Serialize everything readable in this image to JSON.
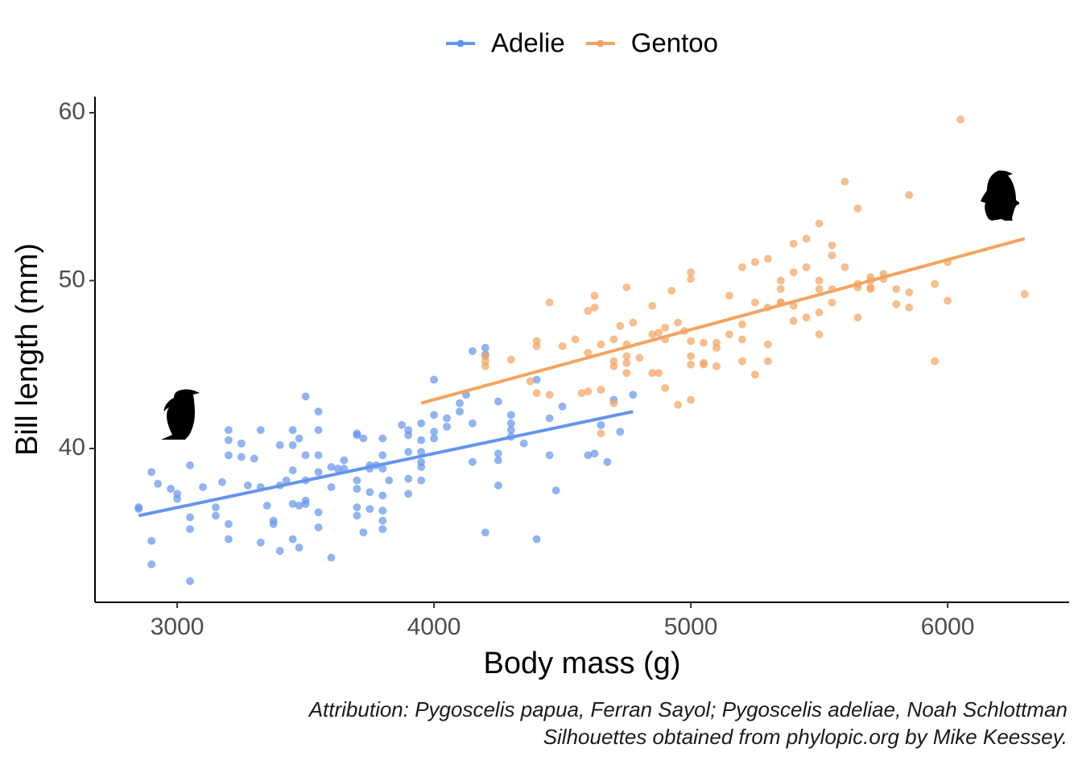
{
  "chart_data": {
    "type": "scatter",
    "xlabel": "Body mass (g)",
    "ylabel": "Bill length (mm)",
    "xlim": [
      2680,
      6473
    ],
    "ylim": [
      30.84,
      60.96
    ],
    "xticks": [
      3000,
      4000,
      5000,
      6000
    ],
    "yticks": [
      40,
      50,
      60
    ],
    "legend": "top",
    "caption": [
      "Attribution: Pygoscelis papua, Ferran Sayol; Pygoscelis adeliae, Noah Schlottman",
      "Silhouettes obtained from phylopic.org by Mike Keessey."
    ],
    "series": [
      {
        "name": "Adelie",
        "color": "#6495ED",
        "x": [
          2850,
          2850,
          2900,
          2900,
          2900,
          2925,
          2975,
          3000,
          3000,
          3050,
          3050,
          3050,
          3050,
          3100,
          3150,
          3175,
          3200,
          3200,
          3200,
          3200,
          3200,
          3150,
          3250,
          3250,
          3275,
          3300,
          3325,
          3325,
          3350,
          3325,
          3375,
          3375,
          3400,
          3400,
          3400,
          3425,
          3450,
          3450,
          3450,
          3450,
          3450,
          3475,
          3475,
          3475,
          3500,
          3500,
          3500,
          3500,
          3500,
          3550,
          3550,
          3550,
          3550,
          3550,
          3550,
          3600,
          3600,
          3600,
          3625,
          3650,
          3650,
          3700,
          3700,
          3700,
          3700,
          3700,
          3700,
          3725,
          3725,
          3750,
          3750,
          3750,
          3750,
          3775,
          3800,
          3800,
          3800,
          3800,
          3800,
          3800,
          3825,
          3875,
          3900,
          3900,
          3900,
          3900,
          3900,
          3950,
          3950,
          3950,
          3950,
          3950,
          3950,
          4000,
          4000,
          4000,
          4000,
          4050,
          4050,
          4100,
          4100,
          4125,
          4150,
          4150,
          4150,
          4200,
          4200,
          4200,
          4250,
          4250,
          4250,
          4250,
          4300,
          4300,
          4300,
          4300,
          4350,
          4400,
          4400,
          4450,
          4450,
          4475,
          4500,
          4600,
          4625,
          4675,
          4700,
          4725,
          4775,
          4650,
          3800
        ],
        "y": [
          36.5,
          36.4,
          38.6,
          34.5,
          33.1,
          37.9,
          37.6,
          37.0,
          37.3,
          39.0,
          35.9,
          35.2,
          32.1,
          37.7,
          36.0,
          38.0,
          41.1,
          40.5,
          39.6,
          35.5,
          34.6,
          36.5,
          40.3,
          39.5,
          37.8,
          39.4,
          37.7,
          41.1,
          36.6,
          34.4,
          35.7,
          35.5,
          40.2,
          37.8,
          33.9,
          38.1,
          41.1,
          40.2,
          38.7,
          36.7,
          34.6,
          36.6,
          40.6,
          34.1,
          43.1,
          39.6,
          36.9,
          36.7,
          38.1,
          42.2,
          41.1,
          39.6,
          38.6,
          36.2,
          35.3,
          38.9,
          37.7,
          33.5,
          38.8,
          39.3,
          38.8,
          40.9,
          40.8,
          38.1,
          37.6,
          36.5,
          36.0,
          35.0,
          40.6,
          39.0,
          38.8,
          37.4,
          36.4,
          39.0,
          40.6,
          39.6,
          38.8,
          36.3,
          35.7,
          35.2,
          38.1,
          41.4,
          41.1,
          40.8,
          39.8,
          38.2,
          37.3,
          41.5,
          39.8,
          39.2,
          38.9,
          38.1,
          40.5,
          44.1,
          42.0,
          41.0,
          40.6,
          41.8,
          41.3,
          42.7,
          42.2,
          43.2,
          41.5,
          39.2,
          45.8,
          46.0,
          45.6,
          35.0,
          42.8,
          39.7,
          39.3,
          37.8,
          42.0,
          41.5,
          41.1,
          40.7,
          40.3,
          44.1,
          34.6,
          41.8,
          39.6,
          37.5,
          42.5,
          39.6,
          39.7,
          39.2,
          42.9,
          41.0,
          43.2,
          41.4,
          37.2
        ],
        "fit": {
          "x": [
            2850,
            4775
          ],
          "y": [
            36.0,
            42.2
          ]
        }
      },
      {
        "name": "Gentoo",
        "color": "#F4A460",
        "x": [
          4200,
          4200,
          4200,
          4300,
          4375,
          4400,
          4400,
          4400,
          4450,
          4450,
          4500,
          4550,
          4575,
          4600,
          4600,
          4600,
          4625,
          4625,
          4650,
          4650,
          4650,
          4700,
          4700,
          4700,
          4700,
          4725,
          4750,
          4750,
          4750,
          4750,
          4750,
          4775,
          4800,
          4850,
          4850,
          4850,
          4875,
          4875,
          4900,
          4900,
          4900,
          4925,
          4950,
          4950,
          4975,
          5000,
          5000,
          5000,
          5000,
          5000,
          5000,
          5050,
          5050,
          5050,
          5100,
          5100,
          5150,
          5150,
          5200,
          5200,
          5200,
          5200,
          5250,
          5250,
          5250,
          5300,
          5300,
          5300,
          5300,
          5350,
          5350,
          5350,
          5400,
          5400,
          5400,
          5400,
          5450,
          5450,
          5450,
          5500,
          5500,
          5500,
          5500,
          5500,
          5550,
          5550,
          5550,
          5600,
          5600,
          5650,
          5650,
          5650,
          5650,
          5700,
          5700,
          5700,
          5700,
          5750,
          5800,
          5800,
          5850,
          5850,
          5850,
          5950,
          5950,
          6000,
          6000,
          6050,
          6300,
          5750,
          5550,
          5100,
          5350
        ],
        "y": [
          45.5,
          45.2,
          44.9,
          45.3,
          44.0,
          46.4,
          46.1,
          43.3,
          48.7,
          43.2,
          46.1,
          46.5,
          43.3,
          48.2,
          45.7,
          43.4,
          49.1,
          48.4,
          46.2,
          43.5,
          40.9,
          46.5,
          45.2,
          44.9,
          42.7,
          47.3,
          46.2,
          45.5,
          45.1,
          44.5,
          49.6,
          47.5,
          45.4,
          48.5,
          46.8,
          44.5,
          46.9,
          44.5,
          47.2,
          46.5,
          43.6,
          49.4,
          47.5,
          42.6,
          47.0,
          50.5,
          50.1,
          46.4,
          45.5,
          45.0,
          42.9,
          46.3,
          45.1,
          45.0,
          46.0,
          44.9,
          49.1,
          46.8,
          50.8,
          47.4,
          46.5,
          45.2,
          51.1,
          48.7,
          44.4,
          51.3,
          48.4,
          46.2,
          45.2,
          48.7,
          48.7,
          50.0,
          52.2,
          50.5,
          48.5,
          47.6,
          52.5,
          50.8,
          47.8,
          53.4,
          49.5,
          48.1,
          46.8,
          50.0,
          52.1,
          49.5,
          48.7,
          55.9,
          50.8,
          54.3,
          49.8,
          47.8,
          49.6,
          50.2,
          50.0,
          49.6,
          49.5,
          50.4,
          49.5,
          48.6,
          55.1,
          49.3,
          48.4,
          49.8,
          45.2,
          51.1,
          48.8,
          59.6,
          49.2,
          50.1,
          51.5,
          46.3,
          49.5
        ],
        "fit": {
          "x": [
            3950,
            6300
          ],
          "y": [
            42.7,
            52.5
          ]
        }
      }
    ]
  }
}
